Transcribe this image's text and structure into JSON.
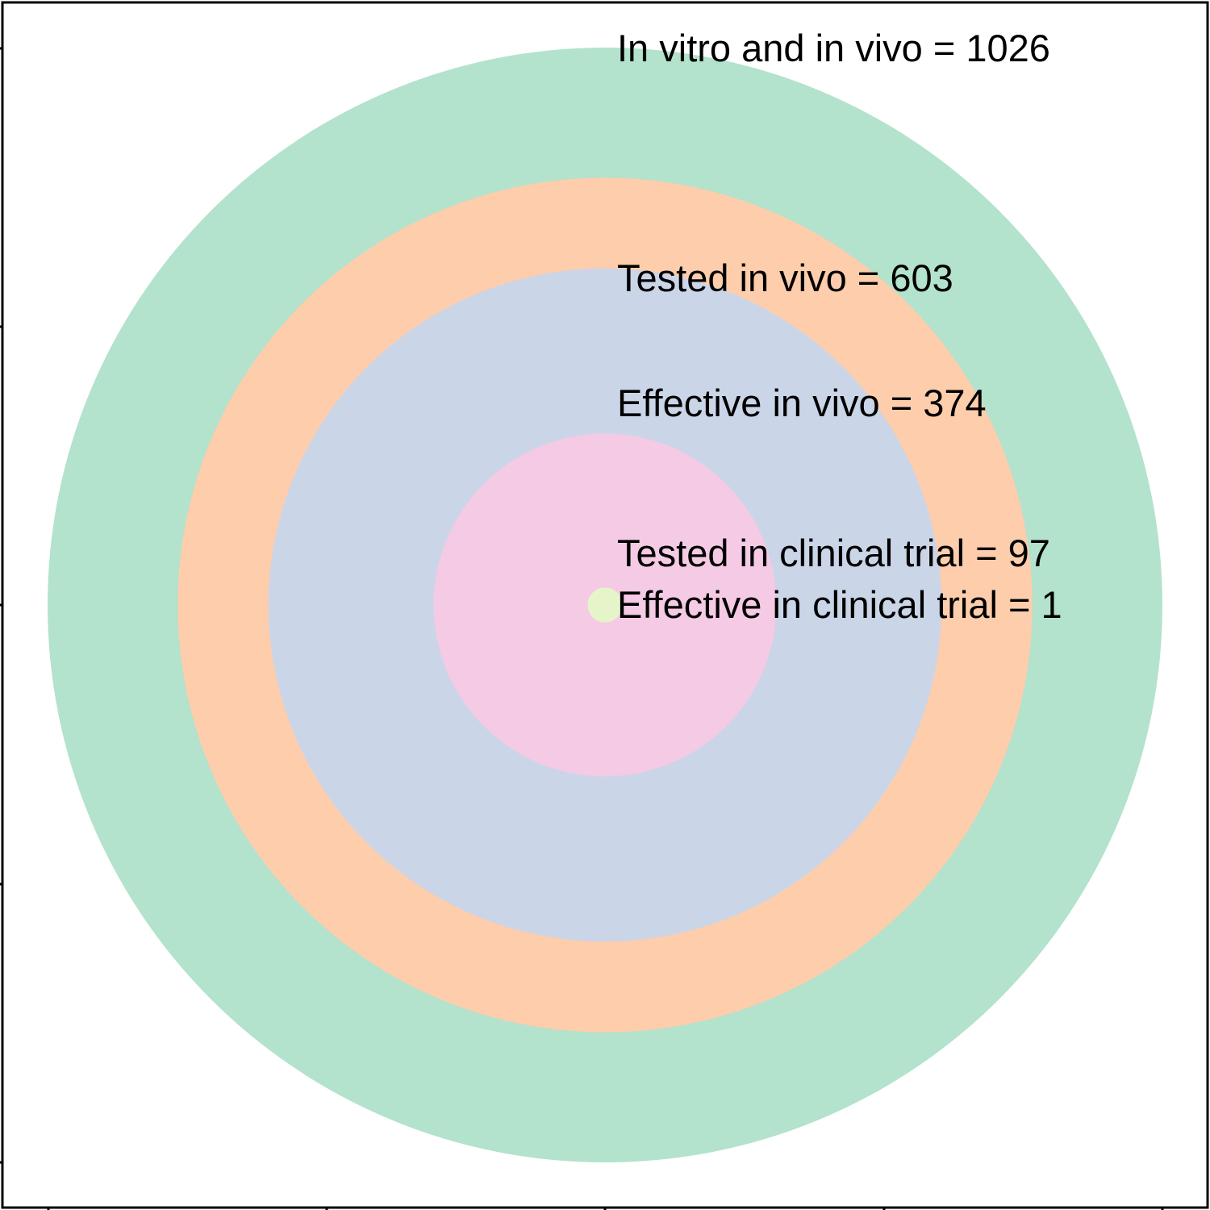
{
  "chart_data": {
    "type": "nested-circles",
    "title": "",
    "xlabel": "",
    "ylabel": "",
    "grid": false,
    "legend": "none",
    "series": [
      {
        "name": "In vitro and in vivo",
        "value": 1026,
        "color": "#b3e2cd",
        "label": "In vitro and in vivo = 1026"
      },
      {
        "name": "Tested in vivo",
        "value": 603,
        "color": "#fdcdac",
        "label": "Tested in vivo = 603"
      },
      {
        "name": "Effective in vivo",
        "value": 374,
        "color": "#cbd5e8",
        "label": "Effective in vivo = 374"
      },
      {
        "name": "Tested in clinical trial",
        "value": 97,
        "color": "#f4cae4",
        "label": "Tested in clinical trial = 97"
      },
      {
        "name": "Effective in clinical trial",
        "value": 1,
        "color": "#e6f5c9",
        "label": "Effective in clinical trial = 1"
      }
    ]
  }
}
